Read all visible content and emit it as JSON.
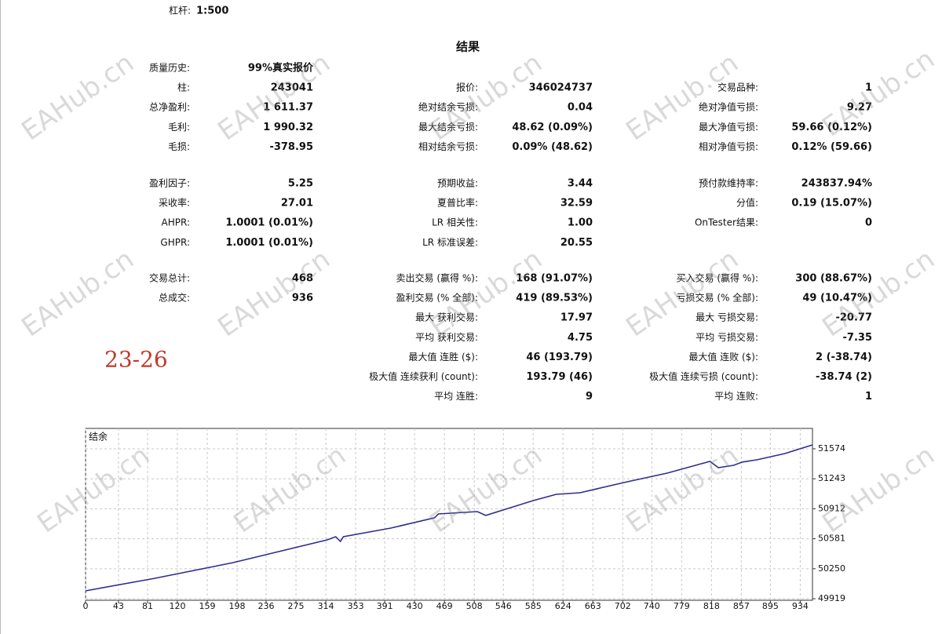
{
  "report": {
    "leverage_label": "杠杆:",
    "leverage": "1:500",
    "title": "结果",
    "sections": [
      [
        [
          [
            "质量历史:",
            "99%真实报价"
          ],
          null,
          null
        ],
        [
          [
            "柱:",
            "243041"
          ],
          [
            "报价:",
            "346024737"
          ],
          [
            "交易品种:",
            "1"
          ]
        ],
        [
          [
            "总净盈利:",
            "1 611.37"
          ],
          [
            "绝对结余亏损:",
            "0.04"
          ],
          [
            "绝对净值亏损:",
            "9.27"
          ]
        ],
        [
          [
            "毛利:",
            "1 990.32"
          ],
          [
            "最大结余亏损:",
            "48.62 (0.09%)"
          ],
          [
            "最大净值亏损:",
            "59.66 (0.12%)"
          ]
        ],
        [
          [
            "毛损:",
            "-378.95"
          ],
          [
            "相对结余亏损:",
            "0.09% (48.62)"
          ],
          [
            "相对净值亏损:",
            "0.12% (59.66)"
          ]
        ]
      ],
      [
        [
          [
            "盈利因子:",
            "5.25"
          ],
          [
            "预期收益:",
            "3.44"
          ],
          [
            "预付款维持率:",
            "243837.94%"
          ]
        ],
        [
          [
            "采收率:",
            "27.01"
          ],
          [
            "夏普比率:",
            "32.59"
          ],
          [
            "分值:",
            "0.19 (15.07%)"
          ]
        ],
        [
          [
            "AHPR:",
            "1.0001 (0.01%)"
          ],
          [
            "LR 相关性:",
            "1.00"
          ],
          [
            "OnTester结果:",
            "0"
          ]
        ],
        [
          [
            "GHPR:",
            "1.0001 (0.01%)"
          ],
          [
            "LR 标准误差:",
            "20.55"
          ],
          null
        ]
      ],
      [
        [
          [
            "交易总计:",
            "468"
          ],
          [
            "卖出交易 (赢得 %):",
            "168 (91.07%)"
          ],
          [
            "买入交易 (赢得 %):",
            "300 (88.67%)"
          ]
        ],
        [
          [
            "总成交:",
            "936"
          ],
          [
            "盈利交易 (% 全部):",
            "419 (89.53%)"
          ],
          [
            "亏损交易 (% 全部):",
            "49 (10.47%)"
          ]
        ],
        [
          null,
          [
            "最大 获利交易:",
            "17.97"
          ],
          [
            "最大 亏损交易:",
            "-20.77"
          ]
        ],
        [
          null,
          [
            "平均 获利交易:",
            "4.75"
          ],
          [
            "平均 亏损交易:",
            "-7.35"
          ]
        ],
        [
          null,
          [
            "最大值 连胜 ($):",
            "46 (193.79)"
          ],
          [
            "最大值 连败 ($):",
            "2 (-38.74)"
          ]
        ],
        [
          null,
          [
            "极大值 连续获利 (count):",
            "193.79 (46)"
          ],
          [
            "极大值 连续亏损 (count):",
            "-38.74 (2)"
          ]
        ],
        [
          null,
          [
            "平均 连胜:",
            "9"
          ],
          [
            "平均 连败:",
            "1"
          ]
        ]
      ]
    ]
  },
  "annotation": "23-26",
  "watermark": "EAHub.cn",
  "chart_data": {
    "type": "line",
    "title": "结余",
    "color": "#2e2e8e",
    "x": [
      0,
      90,
      193,
      316,
      327,
      333,
      337,
      399,
      456,
      461,
      512,
      523,
      585,
      615,
      646,
      708,
      760,
      816,
      827,
      847,
      858,
      878,
      914,
      950
    ],
    "values": [
      50006,
      50144,
      50318,
      50569,
      50604,
      50552,
      50604,
      50699,
      50812,
      50855,
      50881,
      50838,
      51002,
      51071,
      51089,
      51210,
      51305,
      51435,
      51366,
      51392,
      51427,
      51453,
      51522,
      51617
    ],
    "xlim": [
      0,
      950
    ],
    "ylim": [
      49902,
      51799
    ],
    "xticks": [
      0,
      43,
      81,
      120,
      159,
      198,
      236,
      275,
      314,
      353,
      391,
      430,
      469,
      508,
      546,
      585,
      624,
      663,
      702,
      740,
      779,
      818,
      857,
      895,
      934
    ],
    "yticks": [
      49919,
      50250,
      50581,
      50912,
      51243,
      51574
    ],
    "grid": true
  }
}
